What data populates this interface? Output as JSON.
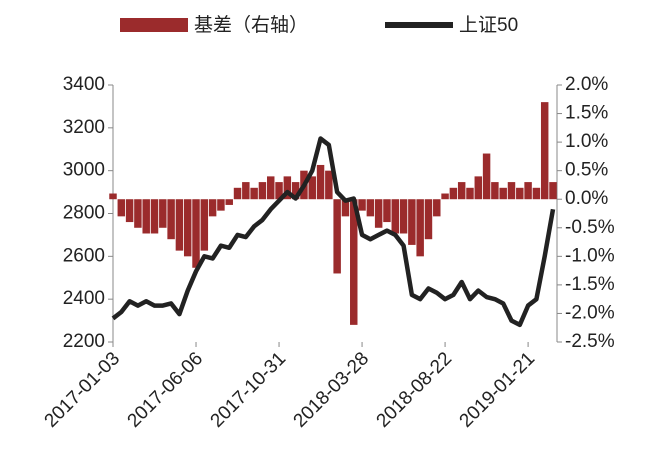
{
  "chart_data": {
    "type": "bar-line",
    "categories": [
      "2017-01-03",
      null,
      null,
      null,
      null,
      null,
      null,
      null,
      null,
      null,
      "2017-06-06",
      null,
      null,
      null,
      null,
      null,
      null,
      null,
      null,
      null,
      "2017-10-31",
      null,
      null,
      null,
      null,
      null,
      null,
      null,
      null,
      null,
      "2018-03-28",
      null,
      null,
      null,
      null,
      null,
      null,
      null,
      null,
      null,
      "2018-08-22",
      null,
      null,
      null,
      null,
      null,
      null,
      null,
      null,
      null,
      "2019-01-21",
      null,
      null,
      null
    ],
    "series": [
      {
        "name": "基差（右轴）",
        "type": "bar",
        "axis": "y2",
        "color": "#9b2b2c",
        "values": [
          0.1,
          -0.3,
          -0.4,
          -0.5,
          -0.6,
          -0.6,
          -0.5,
          -0.7,
          -0.9,
          -1.0,
          -1.2,
          -0.9,
          -0.3,
          -0.2,
          -0.1,
          0.2,
          0.3,
          0.2,
          0.3,
          0.4,
          0.3,
          0.4,
          0.3,
          0.5,
          0.4,
          0.6,
          0.5,
          -1.3,
          -0.3,
          -2.2,
          -0.2,
          -0.3,
          -0.5,
          -0.4,
          -0.6,
          -0.6,
          -0.8,
          -1.0,
          -0.7,
          -0.3,
          0.1,
          0.2,
          0.3,
          0.2,
          0.4,
          0.8,
          0.3,
          0.2,
          0.3,
          0.2,
          0.3,
          0.2,
          1.7,
          0.3
        ]
      },
      {
        "name": "上证50",
        "type": "line",
        "color": "#222222",
        "values": [
          2310,
          2340,
          2390,
          2370,
          2390,
          2370,
          2370,
          2380,
          2330,
          2440,
          2530,
          2600,
          2590,
          2650,
          2640,
          2700,
          2690,
          2740,
          2770,
          2820,
          2860,
          2900,
          2870,
          2930,
          3000,
          3150,
          3120,
          2900,
          2860,
          2870,
          2700,
          2680,
          2700,
          2720,
          2700,
          2650,
          2420,
          2400,
          2450,
          2430,
          2400,
          2420,
          2480,
          2400,
          2440,
          2410,
          2400,
          2380,
          2300,
          2280,
          2370,
          2400,
          2600,
          2820
        ]
      }
    ],
    "ylim": [
      2200,
      3400
    ],
    "yticks": [
      2200,
      2400,
      2600,
      2800,
      3000,
      3200,
      3400
    ],
    "y2lim": [
      -2.5,
      2.0
    ],
    "y2ticks": [
      {
        "value": -2.5,
        "label": "-2.5%"
      },
      {
        "value": -2.0,
        "label": "-2.0%"
      },
      {
        "value": -1.5,
        "label": "-1.5%"
      },
      {
        "value": -1.0,
        "label": "-1.0%"
      },
      {
        "value": -0.5,
        "label": "-0.5%"
      },
      {
        "value": 0.0,
        "label": "0.0%"
      },
      {
        "value": 0.5,
        "label": "0.5%"
      },
      {
        "value": 1.0,
        "label": "1.0%"
      },
      {
        "value": 1.5,
        "label": "1.5%"
      },
      {
        "value": 2.0,
        "label": "2.0%"
      }
    ]
  }
}
